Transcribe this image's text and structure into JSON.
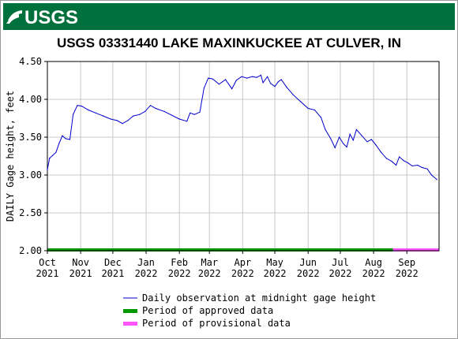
{
  "banner": {
    "brand": "USGS",
    "color": "#00703c"
  },
  "chart_data": {
    "type": "line",
    "title": "USGS 03331440 LAKE MAXINKUCKEE AT CULVER, IN",
    "ylabel": "DAILY Gage height, feet",
    "xlabel": "",
    "ylim": [
      2.0,
      4.5
    ],
    "yticks": [
      "2.00",
      "2.50",
      "3.00",
      "3.50",
      "4.00",
      "4.50"
    ],
    "xlim": [
      "2021-10-01",
      "2022-10-01"
    ],
    "xticks": [
      {
        "date": "2021-10-01",
        "line1": "Oct",
        "line2": "2021"
      },
      {
        "date": "2021-11-01",
        "line1": "Nov",
        "line2": "2021"
      },
      {
        "date": "2021-12-01",
        "line1": "Dec",
        "line2": "2021"
      },
      {
        "date": "2022-01-01",
        "line1": "Jan",
        "line2": "2022"
      },
      {
        "date": "2022-02-01",
        "line1": "Feb",
        "line2": "2022"
      },
      {
        "date": "2022-03-01",
        "line1": "Mar",
        "line2": "2022"
      },
      {
        "date": "2022-04-01",
        "line1": "Apr",
        "line2": "2022"
      },
      {
        "date": "2022-05-01",
        "line1": "May",
        "line2": "2022"
      },
      {
        "date": "2022-06-01",
        "line1": "Jun",
        "line2": "2022"
      },
      {
        "date": "2022-07-01",
        "line1": "Jul",
        "line2": "2022"
      },
      {
        "date": "2022-08-01",
        "line1": "Aug",
        "line2": "2022"
      },
      {
        "date": "2022-09-01",
        "line1": "Sep",
        "line2": "2022"
      }
    ],
    "grid": true,
    "series": [
      {
        "name": "Daily observation at midnight gage height",
        "color": "#0000cc",
        "points": [
          [
            "2021-10-01",
            3.07
          ],
          [
            "2021-10-03",
            3.22
          ],
          [
            "2021-10-06",
            3.26
          ],
          [
            "2021-10-09",
            3.3
          ],
          [
            "2021-10-12",
            3.42
          ],
          [
            "2021-10-15",
            3.52
          ],
          [
            "2021-10-18",
            3.48
          ],
          [
            "2021-10-22",
            3.47
          ],
          [
            "2021-10-25",
            3.8
          ],
          [
            "2021-10-29",
            3.92
          ],
          [
            "2021-11-02",
            3.91
          ],
          [
            "2021-11-08",
            3.86
          ],
          [
            "2021-11-15",
            3.82
          ],
          [
            "2021-11-22",
            3.78
          ],
          [
            "2021-11-29",
            3.74
          ],
          [
            "2021-12-05",
            3.72
          ],
          [
            "2021-12-10",
            3.68
          ],
          [
            "2021-12-15",
            3.72
          ],
          [
            "2021-12-20",
            3.78
          ],
          [
            "2021-12-26",
            3.8
          ],
          [
            "2021-12-31",
            3.84
          ],
          [
            "2022-01-05",
            3.92
          ],
          [
            "2022-01-10",
            3.88
          ],
          [
            "2022-01-18",
            3.84
          ],
          [
            "2022-01-25",
            3.79
          ],
          [
            "2022-02-01",
            3.74
          ],
          [
            "2022-02-08",
            3.71
          ],
          [
            "2022-02-11",
            3.82
          ],
          [
            "2022-02-15",
            3.8
          ],
          [
            "2022-02-20",
            3.83
          ],
          [
            "2022-02-24",
            4.15
          ],
          [
            "2022-02-28",
            4.28
          ],
          [
            "2022-03-04",
            4.27
          ],
          [
            "2022-03-10",
            4.2
          ],
          [
            "2022-03-16",
            4.26
          ],
          [
            "2022-03-22",
            4.14
          ],
          [
            "2022-03-26",
            4.25
          ],
          [
            "2022-03-31",
            4.3
          ],
          [
            "2022-04-05",
            4.28
          ],
          [
            "2022-04-10",
            4.3
          ],
          [
            "2022-04-14",
            4.29
          ],
          [
            "2022-04-18",
            4.32
          ],
          [
            "2022-04-20",
            4.22
          ],
          [
            "2022-04-24",
            4.3
          ],
          [
            "2022-04-27",
            4.21
          ],
          [
            "2022-05-01",
            4.17
          ],
          [
            "2022-05-04",
            4.23
          ],
          [
            "2022-05-07",
            4.26
          ],
          [
            "2022-05-12",
            4.16
          ],
          [
            "2022-05-18",
            4.06
          ],
          [
            "2022-05-25",
            3.97
          ],
          [
            "2022-06-01",
            3.88
          ],
          [
            "2022-06-07",
            3.86
          ],
          [
            "2022-06-13",
            3.76
          ],
          [
            "2022-06-17",
            3.6
          ],
          [
            "2022-06-22",
            3.48
          ],
          [
            "2022-06-26",
            3.36
          ],
          [
            "2022-06-30",
            3.5
          ],
          [
            "2022-07-04",
            3.41
          ],
          [
            "2022-07-07",
            3.37
          ],
          [
            "2022-07-10",
            3.54
          ],
          [
            "2022-07-13",
            3.46
          ],
          [
            "2022-07-16",
            3.6
          ],
          [
            "2022-07-21",
            3.52
          ],
          [
            "2022-07-26",
            3.44
          ],
          [
            "2022-07-30",
            3.47
          ],
          [
            "2022-08-03",
            3.4
          ],
          [
            "2022-08-08",
            3.3
          ],
          [
            "2022-08-13",
            3.22
          ],
          [
            "2022-08-18",
            3.18
          ],
          [
            "2022-08-22",
            3.13
          ],
          [
            "2022-08-25",
            3.24
          ],
          [
            "2022-08-29",
            3.19
          ],
          [
            "2022-09-02",
            3.16
          ],
          [
            "2022-09-06",
            3.12
          ],
          [
            "2022-09-11",
            3.13
          ],
          [
            "2022-09-15",
            3.1
          ],
          [
            "2022-09-20",
            3.08
          ],
          [
            "2022-09-24",
            3.0
          ],
          [
            "2022-09-29",
            2.94
          ]
        ]
      }
    ],
    "periods": [
      {
        "name": "Period of approved data",
        "color": "#009900",
        "start": "2021-10-01",
        "end": "2022-08-19"
      },
      {
        "name": "Period of provisional data",
        "color": "#ff55ff",
        "start": "2022-08-19",
        "end": "2022-10-01"
      }
    ],
    "legend": [
      {
        "label": "Daily observation at midnight gage height",
        "color": "#0000cc",
        "kind": "line"
      },
      {
        "label": "Period of approved data",
        "color": "#009900",
        "kind": "bar"
      },
      {
        "label": "Period of provisional data",
        "color": "#ff55ff",
        "kind": "bar"
      }
    ],
    "legend_position": "bottom"
  }
}
